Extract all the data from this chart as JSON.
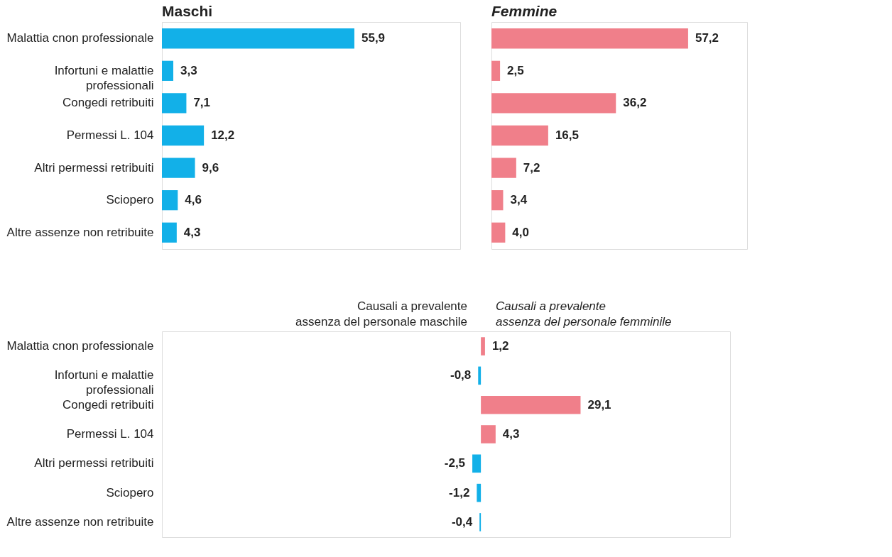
{
  "chart_data": [
    {
      "type": "bar",
      "orientation": "horizontal",
      "title": "Maschi",
      "categories": [
        "Malattia cnon professionale",
        "Infortuni e malattie\nprofessionali",
        "Congedi retribuiti",
        "Permessi L. 104",
        "Altri permessi retribuiti",
        "Sciopero",
        "Altre assenze non retribuite"
      ],
      "values": [
        55.9,
        3.3,
        7.1,
        12.2,
        9.6,
        4.6,
        4.3
      ],
      "value_labels": [
        "55,9",
        "3,3",
        "7,1",
        "12,2",
        "9,6",
        "4,6",
        "4,3"
      ],
      "color": "#12b0e8",
      "tick_labels": "y"
    },
    {
      "type": "bar",
      "orientation": "horizontal",
      "title": "Femmine",
      "categories": [
        null,
        null,
        null,
        null,
        null,
        null,
        null
      ],
      "values": [
        57.2,
        2.5,
        36.2,
        16.5,
        7.2,
        3.4,
        4.0
      ],
      "value_labels": [
        "57,2",
        "2,5",
        "36,2",
        "16,5",
        "7,2",
        "3,4",
        "4,0"
      ],
      "color": "#f07f8a",
      "tick_labels": "y"
    },
    {
      "type": "bar",
      "orientation": "horizontal",
      "categories": [
        "Malattia cnon professionale",
        "Infortuni e malattie\nprofessionali",
        "Congedi retribuiti",
        "Permessi L. 104",
        "Altri permessi retribuiti",
        "Sciopero",
        "Altre assenze non retribuite"
      ],
      "values": [
        1.2,
        -0.8,
        29.1,
        4.3,
        -2.5,
        -1.2,
        -0.4
      ],
      "value_labels": [
        "1,2",
        "-0,8",
        "29,1",
        "4,3",
        "-2,5",
        "-1,2",
        "-0,4"
      ],
      "colors": [
        "#f07f8a",
        "#12b0e8",
        "#f07f8a",
        "#f07f8a",
        "#12b0e8",
        "#12b0e8",
        "#12b0e8"
      ],
      "tick_labels": "y",
      "annotations": [
        "Causali a prevalente\nassenza del personale maschile",
        "Causali a prevalente\nassenza del personale femminile"
      ]
    }
  ]
}
